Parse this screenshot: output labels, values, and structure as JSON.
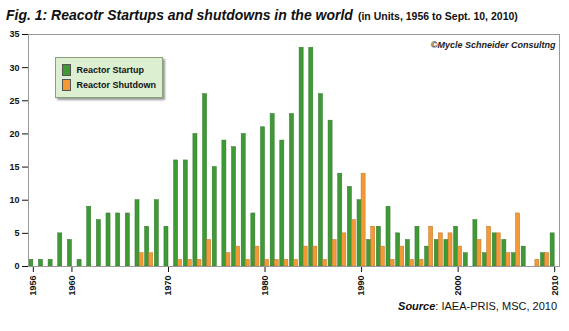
{
  "chart_data": {
    "type": "bar",
    "title": "Fig. 1: Reacotr Startups and shutdowns in the world",
    "subtitle": "(in Units, 1956 to Sept. 10, 2010)",
    "annotations": [
      "©Mycle Schneider Consultng"
    ],
    "source": "Source: IAEA-PRIS, MSC, 2010",
    "x": [
      1956,
      1957,
      1958,
      1959,
      1960,
      1961,
      1962,
      1963,
      1964,
      1965,
      1966,
      1967,
      1968,
      1969,
      1970,
      1971,
      1972,
      1973,
      1974,
      1975,
      1976,
      1977,
      1978,
      1979,
      1980,
      1981,
      1982,
      1983,
      1984,
      1985,
      1986,
      1987,
      1988,
      1989,
      1990,
      1991,
      1992,
      1993,
      1994,
      1995,
      1996,
      1997,
      1998,
      1999,
      2000,
      2001,
      2002,
      2003,
      2004,
      2005,
      2006,
      2007,
      2008,
      2009,
      2010
    ],
    "series": [
      {
        "name": "Reactor Startup",
        "color": "#3f9a36",
        "values": [
          1,
          1,
          1,
          5,
          4,
          1,
          9,
          7,
          8,
          8,
          8,
          10,
          6,
          10,
          6,
          16,
          16,
          20,
          26,
          15,
          19,
          18,
          20,
          8,
          21,
          23,
          19,
          23,
          33,
          33,
          26,
          22,
          14,
          12,
          10,
          4,
          6,
          9,
          5,
          4,
          6,
          3,
          4,
          4,
          6,
          2,
          7,
          2,
          5,
          4,
          2,
          3,
          0,
          2,
          5
        ]
      },
      {
        "name": "Reactor Shutdown",
        "color": "#f39a36",
        "values": [
          0,
          0,
          0,
          0,
          0,
          0,
          0,
          0,
          0,
          0,
          0,
          2,
          2,
          0,
          0,
          1,
          1,
          1,
          4,
          0,
          2,
          3,
          1,
          3,
          1,
          1,
          1,
          1,
          3,
          3,
          1,
          4,
          5,
          7,
          14,
          6,
          3,
          1,
          3,
          1,
          1,
          6,
          5,
          5,
          3,
          0,
          4,
          6,
          5,
          2,
          8,
          0,
          1,
          2,
          0
        ]
      }
    ],
    "xlim": [
      1955.5,
      2010.5
    ],
    "xticks": [
      1956,
      1960,
      1970,
      1980,
      1990,
      2000,
      2010
    ],
    "ylim": [
      0,
      35
    ],
    "yticks": [
      0,
      5,
      10,
      15,
      20,
      25,
      30,
      35
    ],
    "grid": false,
    "legend": "top-left"
  }
}
